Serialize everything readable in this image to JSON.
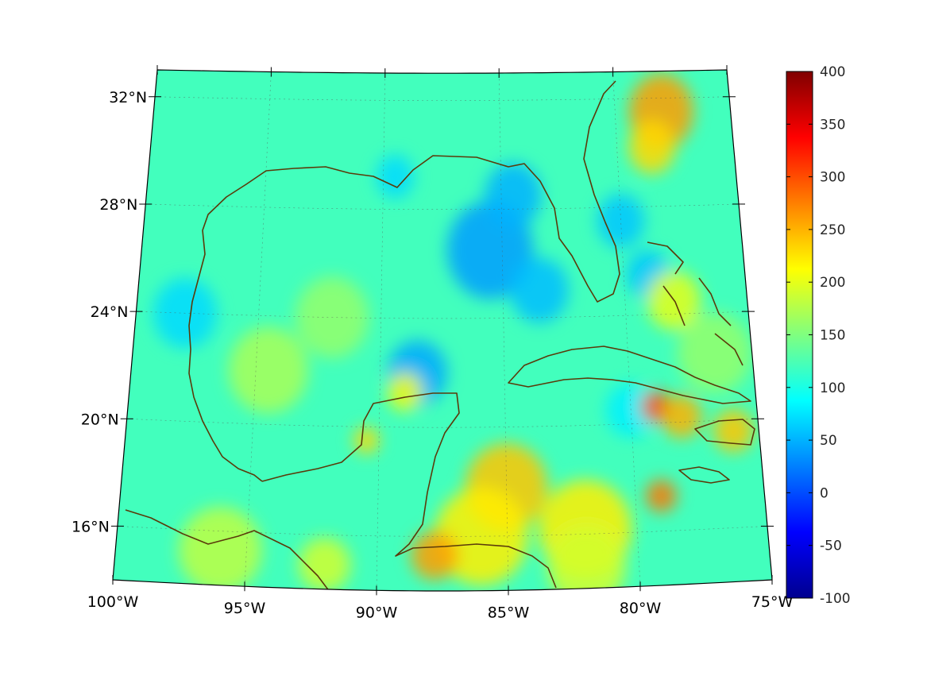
{
  "map": {
    "projection": "conic",
    "lon_range": [
      -100,
      -75
    ],
    "lat_range": [
      14,
      33
    ],
    "grid": true,
    "coastline_color": "#5a3a0a",
    "lat_ticks": [
      {
        "value": 32,
        "label": "32°N"
      },
      {
        "value": 28,
        "label": "28°N"
      },
      {
        "value": 24,
        "label": "24°N"
      },
      {
        "value": 20,
        "label": "20°N"
      },
      {
        "value": 16,
        "label": "16°N"
      }
    ],
    "lon_ticks": [
      {
        "value": -100,
        "label": "100°W"
      },
      {
        "value": -95,
        "label": "95°W"
      },
      {
        "value": -90,
        "label": "90°W"
      },
      {
        "value": -85,
        "label": "85°W"
      },
      {
        "value": -80,
        "label": "80°W"
      },
      {
        "value": -75,
        "label": "75°W"
      }
    ],
    "field_background": 120,
    "field_blobs": [
      {
        "lon": -88.5,
        "lat": 22.0,
        "value": 45,
        "r": 1.2
      },
      {
        "lon": -85.5,
        "lat": 26.5,
        "value": 40,
        "r": 1.8
      },
      {
        "lon": -84.5,
        "lat": 28.5,
        "value": 50,
        "r": 1.2
      },
      {
        "lon": -83.5,
        "lat": 25.0,
        "value": 55,
        "r": 1.2
      },
      {
        "lon": -80.0,
        "lat": 27.5,
        "value": 60,
        "r": 1.0
      },
      {
        "lon": -79.0,
        "lat": 25.5,
        "value": 60,
        "r": 0.9
      },
      {
        "lon": -98.0,
        "lat": 24.0,
        "value": 70,
        "r": 1.3
      },
      {
        "lon": -89.5,
        "lat": 29.2,
        "value": 70,
        "r": 0.8
      },
      {
        "lon": -80.0,
        "lat": 20.5,
        "value": 80,
        "r": 1.0
      },
      {
        "lon": -94.5,
        "lat": 22.0,
        "value": 170,
        "r": 1.6
      },
      {
        "lon": -92.0,
        "lat": 24.0,
        "value": 160,
        "r": 1.5
      },
      {
        "lon": -89.0,
        "lat": 21.3,
        "value": 210,
        "r": 0.7
      },
      {
        "lon": -90.5,
        "lat": 19.5,
        "value": 230,
        "r": 0.5
      },
      {
        "lon": -85.0,
        "lat": 17.8,
        "value": 240,
        "r": 1.6
      },
      {
        "lon": -86.0,
        "lat": 16.0,
        "value": 220,
        "r": 1.8
      },
      {
        "lon": -87.8,
        "lat": 15.3,
        "value": 260,
        "r": 0.9
      },
      {
        "lon": -82.0,
        "lat": 16.2,
        "value": 220,
        "r": 1.8
      },
      {
        "lon": -79.0,
        "lat": 17.3,
        "value": 280,
        "r": 0.6
      },
      {
        "lon": -79.0,
        "lat": 20.6,
        "value": 300,
        "r": 0.6
      },
      {
        "lon": -78.0,
        "lat": 20.2,
        "value": 250,
        "r": 0.8
      },
      {
        "lon": -78.0,
        "lat": 24.5,
        "value": 200,
        "r": 1.1
      },
      {
        "lon": -78.0,
        "lat": 31.5,
        "value": 260,
        "r": 1.4
      },
      {
        "lon": -78.5,
        "lat": 30.2,
        "value": 230,
        "r": 1.0
      },
      {
        "lon": -76.0,
        "lat": 19.6,
        "value": 240,
        "r": 0.8
      },
      {
        "lon": -96.0,
        "lat": 15.3,
        "value": 180,
        "r": 1.6
      },
      {
        "lon": -92.0,
        "lat": 14.9,
        "value": 190,
        "r": 1.0
      },
      {
        "lon": -82.0,
        "lat": 14.8,
        "value": 190,
        "r": 1.5
      },
      {
        "lon": -76.5,
        "lat": 22.5,
        "value": 160,
        "r": 1.5
      }
    ]
  },
  "colorbar": {
    "colormap": "jet",
    "min": -100,
    "max": 400,
    "ticks": [
      {
        "value": 400,
        "label": "400"
      },
      {
        "value": 350,
        "label": "350"
      },
      {
        "value": 300,
        "label": "300"
      },
      {
        "value": 250,
        "label": "250"
      },
      {
        "value": 200,
        "label": "200"
      },
      {
        "value": 150,
        "label": "150"
      },
      {
        "value": 100,
        "label": "100"
      },
      {
        "value": 50,
        "label": "50"
      },
      {
        "value": 0,
        "label": "0"
      },
      {
        "value": -50,
        "label": "-50"
      },
      {
        "value": -100,
        "label": "-100"
      }
    ]
  }
}
